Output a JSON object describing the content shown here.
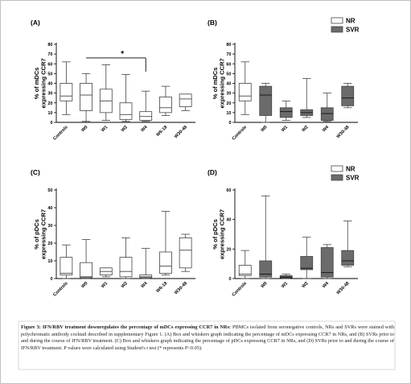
{
  "caption": {
    "heading": "Figure 3: IFN/RBV treatment downregulates the percentage of mDCs expressing CCR7 in NRs:",
    "body": " PBMCs isolated from seronegative controls, NRs and SVRs were stained with polychromatic antibody cocktail described in supplementary Figure 1. (A) Box and whiskers graph indicating the percentage of mDCs expressing CCR7 in NRs, and (B) SVRs prior to and during the course of IFN/RBV treatment. (C) Box and whiskers graph indicating the percentage of pDCs expressing CCR7 in NRs, and (D) SVRs prior to and during the course of IFN/RBV treatment. P values were calculated using Student's t test (* represents P<0.05)."
  },
  "colors": {
    "nr_fill": "#ffffff",
    "svr_fill": "#6b6b6b",
    "line": "#555555"
  },
  "chart_data": [
    {
      "panel": "(A)",
      "type": "box",
      "ylabel": "% of mDCs\nexpressing CCR7",
      "ylim": [
        0,
        80
      ],
      "yticks": [
        0,
        10,
        20,
        30,
        40,
        50,
        60,
        70,
        80
      ],
      "categories": [
        "Controls",
        "W0",
        "W1",
        "W2",
        "W4",
        "W6-18",
        "W30-48"
      ],
      "fills": [
        "nr",
        "nr",
        "nr",
        "nr",
        "nr",
        "nr",
        "nr"
      ],
      "boxes": [
        {
          "min": 8,
          "q1": 22,
          "median": 27,
          "q3": 40,
          "max": 62
        },
        {
          "min": 1,
          "q1": 12,
          "median": 28,
          "q3": 40,
          "max": 50
        },
        {
          "min": 2,
          "q1": 10,
          "median": 22,
          "q3": 34,
          "max": 59
        },
        {
          "min": 1,
          "q1": 3,
          "median": 8,
          "q3": 20,
          "max": 49
        },
        {
          "min": 1,
          "q1": 2,
          "median": 6,
          "q3": 11,
          "max": 32
        },
        {
          "min": 7,
          "q1": 10,
          "median": 15,
          "q3": 26,
          "max": 37
        },
        {
          "min": 12,
          "q1": 16,
          "median": 24,
          "q3": 29,
          "max": 29
        }
      ],
      "significance": {
        "from": "W0",
        "to": "W4",
        "label": "*"
      },
      "legend": null
    },
    {
      "panel": "(B)",
      "type": "box",
      "ylabel": "% of mDCs\nexpressing CCR7",
      "ylim": [
        0,
        80
      ],
      "yticks": [
        0,
        10,
        20,
        30,
        40,
        50,
        60,
        70,
        80
      ],
      "categories": [
        "Controls",
        "W0",
        "W1",
        "W2",
        "W4",
        "W30-48"
      ],
      "fills": [
        "nr",
        "svr",
        "svr",
        "svr",
        "svr",
        "svr"
      ],
      "boxes": [
        {
          "min": 8,
          "q1": 22,
          "median": 27,
          "q3": 40,
          "max": 62
        },
        {
          "min": 0,
          "q1": 7,
          "median": 28,
          "q3": 37,
          "max": 40
        },
        {
          "min": 2,
          "q1": 5,
          "median": 11,
          "q3": 15,
          "max": 22
        },
        {
          "min": 5,
          "q1": 7,
          "median": 10,
          "q3": 13,
          "max": 45
        },
        {
          "min": 1,
          "q1": 2,
          "median": 9,
          "q3": 15,
          "max": 30
        },
        {
          "min": 15,
          "q1": 17,
          "median": 25,
          "q3": 37,
          "max": 40
        }
      ],
      "significance": null,
      "legend": [
        {
          "label": "NR",
          "fill": "nr"
        },
        {
          "label": "SVR",
          "fill": "svr"
        }
      ]
    },
    {
      "panel": "(C)",
      "type": "box",
      "ylabel": "% of pDCs\nexpressing CCR7",
      "ylim": [
        0,
        50
      ],
      "yticks": [
        0,
        10,
        20,
        30,
        40,
        50
      ],
      "categories": [
        "Controls",
        "W0",
        "W1",
        "W2",
        "W4",
        "W6-18",
        "W30-48"
      ],
      "fills": [
        "nr",
        "nr",
        "nr",
        "nr",
        "nr",
        "nr",
        "nr"
      ],
      "boxes": [
        {
          "min": 0,
          "q1": 2,
          "median": 3,
          "q3": 12,
          "max": 19
        },
        {
          "min": 0,
          "q1": 0.5,
          "median": 1,
          "q3": 9,
          "max": 22
        },
        {
          "min": 1,
          "q1": 2,
          "median": 4,
          "q3": 6,
          "max": 6
        },
        {
          "min": 0,
          "q1": 1,
          "median": 4,
          "q3": 12,
          "max": 23
        },
        {
          "min": 0,
          "q1": 0.5,
          "median": 1,
          "q3": 2,
          "max": 17
        },
        {
          "min": 2,
          "q1": 3,
          "median": 7,
          "q3": 15,
          "max": 38
        },
        {
          "min": 4,
          "q1": 6,
          "median": 16,
          "q3": 23,
          "max": 25
        }
      ],
      "significance": null,
      "legend": null
    },
    {
      "panel": "(D)",
      "type": "box",
      "ylabel": "% of pDCs\nexpressing CCR7",
      "ylim": [
        0,
        60
      ],
      "yticks": [
        0,
        20,
        40,
        60
      ],
      "categories": [
        "Controls",
        "W0",
        "W1",
        "W2",
        "W4",
        "W30-48"
      ],
      "fills": [
        "nr",
        "svr",
        "svr",
        "svr",
        "svr",
        "svr"
      ],
      "boxes": [
        {
          "min": 0,
          "q1": 2,
          "median": 3,
          "q3": 9,
          "max": 19
        },
        {
          "min": 0,
          "q1": 1,
          "median": 3,
          "q3": 12,
          "max": 56
        },
        {
          "min": 0,
          "q1": 0.5,
          "median": 1,
          "q3": 2,
          "max": 3
        },
        {
          "min": 0,
          "q1": 6,
          "median": 7,
          "q3": 15,
          "max": 28
        },
        {
          "min": 0,
          "q1": 1,
          "median": 4,
          "q3": 21,
          "max": 23
        },
        {
          "min": 8,
          "q1": 9,
          "median": 12,
          "q3": 19,
          "max": 39
        }
      ],
      "significance": null,
      "legend": [
        {
          "label": "NR",
          "fill": "nr"
        },
        {
          "label": "SVR",
          "fill": "svr"
        }
      ]
    }
  ]
}
